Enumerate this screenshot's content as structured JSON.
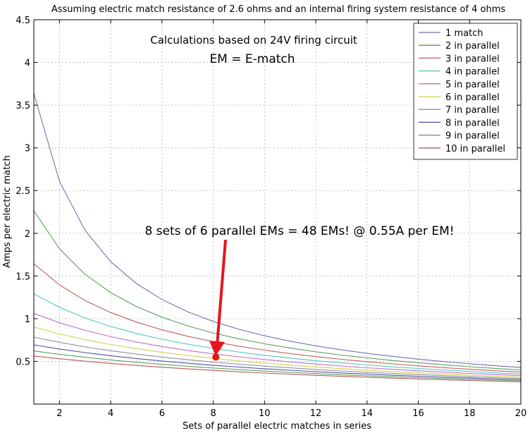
{
  "chart_data": {
    "type": "line",
    "title": "Assuming electric match resistance of 2.6 ohms and an internal firing system resistance of 4 ohms",
    "xlabel": "Sets of parallel electric matches in series",
    "ylabel": "Amps per electric match",
    "xlim": [
      1,
      20
    ],
    "ylim": [
      0,
      4.5
    ],
    "xticks": [
      2,
      4,
      6,
      8,
      10,
      12,
      14,
      16,
      18,
      20
    ],
    "yticks": [
      0.5,
      1,
      1.5,
      2,
      2.5,
      3,
      3.5,
      4,
      4.5
    ],
    "ytick_labels": [
      "0.5",
      "1",
      "1.5",
      "2",
      "2.5",
      "3",
      "3.5",
      "4",
      "4.5"
    ],
    "grid": true,
    "legend_position": "top-right",
    "model": {
      "voltage": 24,
      "match_resistance": 2.6,
      "internal_resistance": 4
    },
    "series": [
      {
        "name": "1 match",
        "parallel": 1,
        "color": "#7070b8"
      },
      {
        "name": "2 in parallel",
        "parallel": 2,
        "color": "#5e9e5e"
      },
      {
        "name": "3 in parallel",
        "parallel": 3,
        "color": "#c06060"
      },
      {
        "name": "4 in parallel",
        "parallel": 4,
        "color": "#55c4c4"
      },
      {
        "name": "5 in parallel",
        "parallel": 5,
        "color": "#c070c0"
      },
      {
        "name": "6 in parallel",
        "parallel": 6,
        "color": "#d2d250"
      },
      {
        "name": "7 in parallel",
        "parallel": 7,
        "color": "#9090a8"
      },
      {
        "name": "8 in parallel",
        "parallel": 8,
        "color": "#5050a0"
      },
      {
        "name": "9 in parallel",
        "parallel": 9,
        "color": "#60a060"
      },
      {
        "name": "10 in parallel",
        "parallel": 10,
        "color": "#b85858"
      }
    ],
    "annotations": {
      "circuit_note": "Calculations based on 24V firing circuit",
      "em_note": "EM = E-match",
      "callout": "8 sets of 6 parallel EMs = 48 EMs! @ 0.55A per EM!",
      "highlight_point": {
        "x": 8.1,
        "y": 0.55,
        "color": "#e8141c"
      }
    }
  }
}
